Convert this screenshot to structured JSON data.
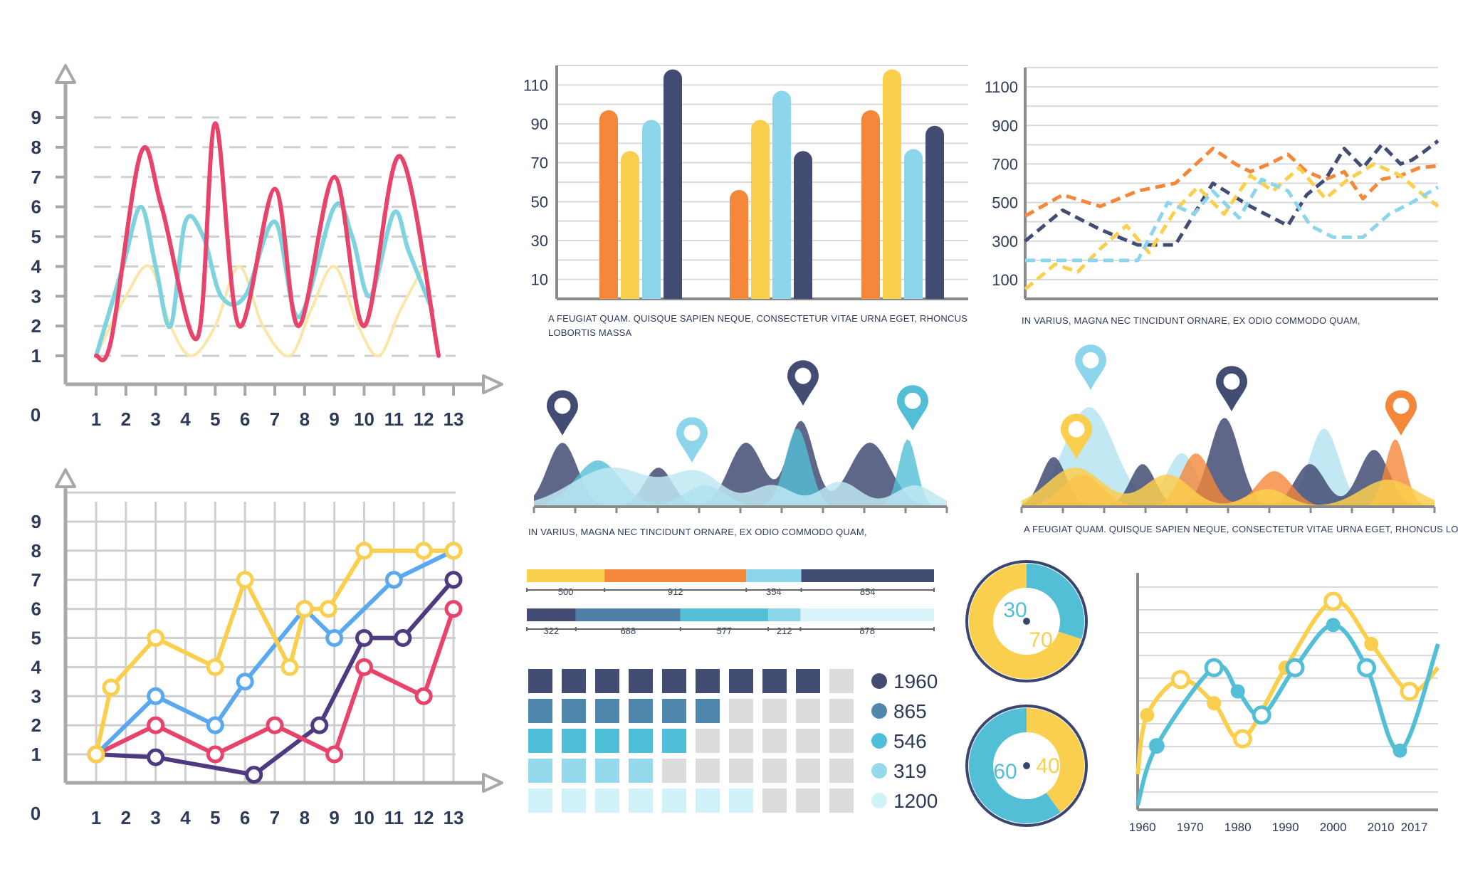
{
  "colors": {
    "red": "#e8436a",
    "cyan": "#7fd3df",
    "pale_yellow": "#f8e7a8",
    "yellow": "#fbcf4e",
    "blue": "#5aa8f0",
    "purple": "#4e3a80",
    "orange": "#f4873a",
    "navy": "#434c73",
    "light_blue": "#8cd5ea",
    "teal": "#52bfd6",
    "axis_gray": "#a8a8a8",
    "grid": "#cfcfcf"
  },
  "chart_data": [
    {
      "id": "wave-line-chart",
      "type": "line",
      "x_ticks": [
        "1",
        "2",
        "3",
        "4",
        "5",
        "6",
        "7",
        "8",
        "9",
        "10",
        "11",
        "12",
        "13"
      ],
      "y_ticks": [
        "9",
        "8",
        "7",
        "6",
        "5",
        "4",
        "3",
        "2",
        "1"
      ],
      "origin_label": "0",
      "xlim": [
        1,
        13
      ],
      "ylim": [
        0,
        9
      ],
      "grid": "dashed horizontal",
      "series": [
        {
          "color": "red",
          "x": [
            1,
            1.5,
            2.5,
            3.2,
            4.4,
            5,
            5.8,
            7,
            7.8,
            9,
            10,
            11.2,
            12.5
          ],
          "y": [
            1,
            1.5,
            7.8,
            6,
            1.6,
            8.8,
            2,
            6.6,
            2,
            7,
            2,
            7.7,
            1
          ]
        },
        {
          "color": "cyan",
          "x": [
            1,
            1.9,
            2.5,
            3,
            3.5,
            4,
            4.6,
            5.2,
            6,
            7,
            7.8,
            9,
            9.6,
            10.2,
            11,
            11.5,
            12.3
          ],
          "y": [
            1,
            4,
            6,
            4,
            2,
            5.5,
            5,
            3,
            3,
            5.5,
            2.3,
            6,
            5,
            3,
            5.8,
            4.5,
            2.5
          ]
        },
        {
          "color": "pale_yellow",
          "x": [
            1,
            2,
            2.8,
            3.5,
            4.2,
            5,
            5.8,
            6.6,
            7.5,
            8.2,
            9,
            9.8,
            10.5,
            11.2,
            12
          ],
          "y": [
            1,
            3,
            4,
            2,
            1,
            2,
            4,
            2,
            1,
            2.5,
            4,
            2,
            1,
            2.5,
            4
          ]
        }
      ]
    },
    {
      "id": "grid-line-chart",
      "type": "line",
      "x_ticks": [
        "1",
        "2",
        "3",
        "4",
        "5",
        "6",
        "7",
        "8",
        "9",
        "10",
        "11",
        "12",
        "13"
      ],
      "y_ticks": [
        "9",
        "8",
        "7",
        "6",
        "5",
        "4",
        "3",
        "2",
        "1"
      ],
      "origin_label": "0",
      "xlim": [
        1,
        13
      ],
      "ylim": [
        0,
        9
      ],
      "grid": "full",
      "series": [
        {
          "color": "yellow",
          "x": [
            1,
            1.5,
            3,
            5,
            6,
            7.5,
            8,
            8.8,
            10,
            12,
            13
          ],
          "y": [
            1,
            3.3,
            5,
            4,
            7,
            4,
            6,
            6,
            8,
            8,
            8
          ]
        },
        {
          "color": "blue",
          "x": [
            1,
            3,
            5,
            6,
            8,
            9,
            11,
            13
          ],
          "y": [
            1,
            3,
            2,
            3.5,
            6,
            5,
            7,
            8
          ]
        },
        {
          "color": "red",
          "x": [
            1,
            3,
            5,
            7,
            9,
            10,
            12,
            13
          ],
          "y": [
            1,
            2,
            1,
            2,
            1,
            4,
            3,
            6
          ]
        },
        {
          "color": "purple",
          "x": [
            1,
            3,
            6.3,
            8.5,
            10,
            11.3,
            13
          ],
          "y": [
            1,
            0.9,
            0.3,
            2,
            5,
            5,
            7
          ]
        }
      ],
      "markers": true
    },
    {
      "id": "bar-chart",
      "type": "bar",
      "y_ticks": [
        "110",
        "90",
        "70",
        "50",
        "30",
        "10"
      ],
      "ylim": [
        0,
        120
      ],
      "groups": [
        {
          "values": [
            97,
            76,
            92,
            118
          ],
          "colors": [
            "orange",
            "yellow",
            "light_blue",
            "navy"
          ]
        },
        {
          "values": [
            56,
            92,
            107,
            76
          ],
          "colors": [
            "orange",
            "yellow",
            "light_blue",
            "navy"
          ]
        },
        {
          "values": [
            97,
            118,
            77,
            89
          ],
          "colors": [
            "orange",
            "yellow",
            "light_blue",
            "navy"
          ]
        }
      ],
      "caption": "A FEUGIAT QUAM. QUISQUE SAPIEN NEQUE, CONSECTETUR VITAE URNA EGET, RHONCUS LOBORTIS MASSA"
    },
    {
      "id": "dashed-line-chart",
      "type": "line",
      "y_ticks": [
        "1100",
        "900",
        "700",
        "500",
        "300",
        "100"
      ],
      "ylim": [
        0,
        1200
      ],
      "series": [
        {
          "color": "orange",
          "x": [
            0,
            1,
            2,
            3,
            4,
            5,
            5.6,
            6,
            6.5,
            7,
            7.5,
            8,
            8.5,
            9,
            9.5,
            10,
            10.5,
            11
          ],
          "y": [
            430,
            540,
            480,
            560,
            600,
            780,
            700,
            660,
            700,
            750,
            660,
            620,
            660,
            520,
            620,
            640,
            680,
            690
          ]
        },
        {
          "color": "navy",
          "x": [
            0,
            1,
            2,
            3,
            4,
            5,
            6,
            7,
            7.5,
            8,
            8.5,
            9,
            9.5,
            10,
            10.3,
            10.6,
            11
          ],
          "y": [
            300,
            460,
            360,
            280,
            280,
            600,
            480,
            380,
            540,
            620,
            780,
            680,
            800,
            700,
            720,
            760,
            820
          ]
        },
        {
          "color": "yellow",
          "x": [
            0,
            0.8,
            1.4,
            2,
            2.7,
            3.3,
            4,
            4.6,
            5.3,
            6,
            6.6,
            7.3,
            8,
            8.6,
            9.3,
            10,
            10.6,
            11
          ],
          "y": [
            50,
            180,
            140,
            260,
            380,
            240,
            460,
            580,
            440,
            640,
            560,
            680,
            520,
            620,
            700,
            640,
            540,
            480
          ]
        },
        {
          "color": "light_blue",
          "x": [
            0,
            2,
            3,
            3.8,
            4.5,
            5,
            5.7,
            6.3,
            7,
            7.6,
            8.2,
            9,
            9.7,
            10.3,
            11
          ],
          "y": [
            200,
            200,
            200,
            500,
            440,
            560,
            420,
            620,
            560,
            380,
            320,
            320,
            440,
            500,
            580
          ]
        }
      ],
      "caption": "IN VARIUS, MAGNA NEC TINCIDUNT ORNARE, EX ODIO COMMODO QUAM,"
    },
    {
      "id": "area-wave-chart-1",
      "type": "area",
      "series": [
        {
          "color": "navy"
        },
        {
          "color": "teal"
        },
        {
          "color": "light_blue"
        }
      ],
      "caption": "IN VARIUS, MAGNA NEC TINCIDUNT ORNARE, EX ODIO COMMODO QUAM,"
    },
    {
      "id": "area-wave-chart-2",
      "type": "area",
      "series": [
        {
          "color": "light_blue"
        },
        {
          "color": "navy"
        },
        {
          "color": "orange"
        },
        {
          "color": "yellow"
        }
      ],
      "caption": "A FEUGIAT QUAM. QUISQUE SAPIEN NEQUE, CONSECTETUR VITAE URNA EGET, RHONCUS LOBORTIS MASSA"
    },
    {
      "id": "stacked-bars",
      "type": "bar",
      "rows": [
        {
          "segments": [
            {
              "value": 500,
              "label": "500",
              "color": "yellow"
            },
            {
              "value": 912,
              "label": "912",
              "color": "orange"
            },
            {
              "value": 354,
              "label": "354",
              "color": "light_blue"
            },
            {
              "value": 854,
              "label": "854",
              "color": "navy"
            }
          ]
        },
        {
          "segments": [
            {
              "value": 322,
              "label": "322",
              "color": "navy"
            },
            {
              "value": 688,
              "label": "688",
              "color": "#4f7ea8"
            },
            {
              "value": 577,
              "label": "577",
              "color": "teal"
            },
            {
              "value": 212,
              "label": "212",
              "color": "light_blue"
            },
            {
              "value": 878,
              "label": "878",
              "color": "#d8f3fa"
            }
          ]
        }
      ]
    },
    {
      "id": "waffle-chart",
      "type": "table",
      "columns": 10,
      "rows": [
        {
          "filled": 9,
          "color": "#434c73",
          "label": "1960"
        },
        {
          "filled": 6,
          "color": "#4f86ab",
          "label": "865"
        },
        {
          "filled": 5,
          "color": "#4fbfd9",
          "label": "546"
        },
        {
          "filled": 4,
          "color": "#96d9ec",
          "label": "319"
        },
        {
          "filled": 7,
          "color": "#d2f2fa",
          "label": "1200"
        }
      ]
    },
    {
      "id": "donut-charts",
      "type": "pie",
      "donuts": [
        {
          "slices": [
            {
              "value": 30,
              "label": "30",
              "color": "teal"
            },
            {
              "value": 70,
              "label": "70",
              "color": "yellow"
            }
          ]
        },
        {
          "slices": [
            {
              "value": 60,
              "label": "60",
              "color": "teal"
            },
            {
              "value": 40,
              "label": "40",
              "color": "yellow"
            }
          ]
        }
      ]
    },
    {
      "id": "year-line-chart",
      "type": "line",
      "x_ticks": [
        "1960",
        "1970",
        "1980",
        "1990",
        "2000",
        "2010",
        "2017"
      ],
      "x_values": [
        1960,
        1970,
        1980,
        1990,
        2000,
        2010,
        2017
      ],
      "xlim": [
        1959,
        2022
      ],
      "ylim": [
        0,
        10
      ],
      "series": [
        {
          "color": "yellow",
          "x": [
            1959,
            1961,
            1968,
            1975,
            1981,
            1990,
            2000,
            2008,
            2016,
            2022
          ],
          "y": [
            1.5,
            4,
            5.5,
            4.5,
            3,
            6,
            8.8,
            7,
            5,
            6
          ]
        },
        {
          "color": "teal",
          "x": [
            1959,
            1963,
            1975,
            1980,
            1985,
            1992,
            2000,
            2007,
            2014,
            2022
          ],
          "y": [
            0.2,
            2.7,
            6,
            5,
            4,
            6,
            7.8,
            6,
            2.5,
            7
          ]
        }
      ],
      "markers": {
        "yellow": [
          [
            1961,
            4
          ],
          [
            1968,
            5.5
          ],
          [
            1975,
            4.5
          ],
          [
            1981,
            3
          ],
          [
            1990,
            6
          ],
          [
            2000,
            8.8
          ],
          [
            2008,
            7
          ],
          [
            2016,
            5
          ]
        ],
        "teal": [
          [
            1963,
            2.7
          ],
          [
            1975,
            6
          ],
          [
            1980,
            5
          ],
          [
            1985,
            4
          ],
          [
            1992,
            6
          ],
          [
            2000,
            7.8
          ],
          [
            2007,
            6
          ],
          [
            2014,
            2.5
          ]
        ]
      }
    }
  ]
}
